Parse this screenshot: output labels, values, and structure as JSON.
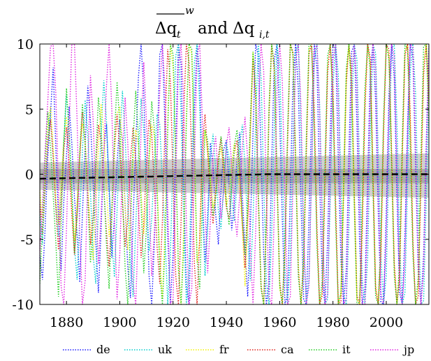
{
  "chart_data": {
    "type": "line",
    "title": {
      "symbol": "Δq",
      "subscript_t": "t",
      "superscript": "w",
      "connector": "and",
      "symbol2": "Δq",
      "subscript2": "i,t"
    },
    "xlabel": "",
    "ylabel": "",
    "xlim": [
      1870,
      2016
    ],
    "ylim": [
      -10,
      10
    ],
    "xticks": [
      1880,
      1900,
      1920,
      1940,
      1960,
      1980,
      2000
    ],
    "yticks": [
      10,
      5,
      0,
      -5,
      -10
    ],
    "ytick_labels": [
      "10",
      "5",
      "0",
      "-5",
      "-10"
    ],
    "grid": false,
    "legend_position": "bottom",
    "series": [
      {
        "name": "de",
        "color": "#1a1aff",
        "values": [
          -6.2,
          -8.1,
          -4.2,
          1.3,
          4.6,
          8.2,
          2.1,
          -3.5,
          -7.4,
          -2.1,
          1.5,
          5.2,
          2.4,
          -1.8,
          -4.6,
          -8.3,
          -3.1,
          2.2,
          6.8,
          4.1,
          -0.5,
          -5.2,
          -9.1,
          -4.3,
          1.8,
          3.9,
          -1.2,
          -6.4,
          -3.3,
          0.8,
          4.2,
          2.6,
          -2.4,
          -7.1,
          -9.5,
          -3.6,
          2.1,
          7.5,
          10,
          6.3,
          -1.1,
          -7.8,
          -10,
          -5.2,
          1.6,
          9.2,
          10,
          3.4,
          -4.8,
          -10,
          -6.1,
          2.3,
          10,
          8.4,
          -0.9,
          -8.6,
          -10,
          -2.2,
          5.1,
          10,
          7.6,
          -1.4,
          -6.8,
          -3.2,
          2.4,
          0.6,
          -3.1,
          -5.4,
          -1.2,
          1.9,
          2.6,
          -0.8,
          -4.3,
          -2.1,
          1.1,
          3.2,
          -1.6,
          -5.8,
          -9.4,
          -4.1,
          3.2,
          10,
          9.1,
          1.6,
          -6.2,
          -10,
          -8.4,
          0.7,
          8.8,
          10,
          4.3,
          -3.6,
          -10,
          -9.2,
          -1.4,
          7.2,
          10,
          6.5,
          -2.1,
          -9.6,
          -10,
          -3.4,
          4.8,
          10,
          8.1,
          -0.6,
          -8.2,
          -10,
          -5.1,
          3.3,
          10,
          9.6,
          1.2,
          -6.7,
          -10,
          -7.3,
          1.8,
          9.4,
          10,
          3.8,
          -5.4,
          -10,
          -8.8,
          -0.4,
          7.9,
          10,
          5.6,
          -2.9,
          -9.8,
          -10,
          -2.8,
          6.1,
          10,
          7.4,
          -1.6,
          -9.1,
          -10,
          -4.6,
          3.9,
          10,
          8.9,
          0.8,
          -7.5,
          -10,
          -6.2,
          2.4,
          9.8,
          10,
          2.7
        ]
      },
      {
        "name": "uk",
        "color": "#00cccc",
        "values": [
          -3.1,
          -5.4,
          -1.2,
          2.8,
          4.9,
          1.6,
          -2.3,
          -4.8,
          -1.5,
          2.2,
          6.1,
          3.4,
          -0.9,
          -5.6,
          -8.1,
          -3.2,
          1.8,
          5.7,
          3.1,
          -1.4,
          -6.2,
          -8.4,
          -2.6,
          3.3,
          7.2,
          4.1,
          -0.8,
          -5.1,
          -7.9,
          -2.8,
          2.6,
          6.4,
          2.9,
          -2.2,
          -6.8,
          -9.4,
          -4.1,
          1.5,
          5.8,
          3.3,
          -1.3,
          -5.9,
          -3.4,
          0.9,
          4.6,
          3.8,
          -0.6,
          -4.9,
          -10,
          -6.2,
          1.4,
          9.1,
          10,
          4.6,
          -3.8,
          -10,
          -7.2,
          0.8,
          8.6,
          10,
          5.1,
          -2.6,
          -7.8,
          -4.4,
          1.2,
          3.1,
          0.4,
          -2.8,
          -4.2,
          -1.1,
          2.4,
          1.3,
          -1.9,
          -3.6,
          -0.7,
          2.2,
          3.8,
          0.6,
          -4.4,
          -8.2,
          -3.6,
          4.1,
          10,
          7.4,
          -0.8,
          -8.1,
          -10,
          -4.6,
          3.7,
          10,
          8.2,
          0.6,
          -7.3,
          -10,
          -6.4,
          2.1,
          9.4,
          10,
          3.2,
          -5.8,
          -10,
          -8.1,
          0.3,
          8.7,
          10,
          5.3,
          -3.1,
          -10,
          -9.6,
          -1.8,
          6.9,
          10,
          7.6,
          -0.9,
          -9.2,
          -10,
          -4.2,
          5.1,
          10,
          8.8,
          0.4,
          -8.1,
          -10,
          -6.6,
          3.2,
          10,
          9.3,
          1.6,
          -6.4,
          -10,
          -7.8,
          1.4,
          9.6,
          10,
          4.1,
          -5.2,
          -10,
          -9.1,
          -0.6,
          7.9,
          10,
          6.2,
          -2.8,
          -10,
          -9.7,
          -1.9,
          6.8,
          10,
          5.2,
          -4.6,
          -10,
          -5.2
        ]
      },
      {
        "name": "fr",
        "color": "#f2f200",
        "values": [
          -1.2,
          -3.4,
          0.8,
          3.6,
          5.2,
          2.1,
          -1.8,
          -3.9,
          -0.6,
          2.8,
          4.4,
          1.2,
          -2.4,
          -5.1,
          -2.2,
          1.6,
          3.9,
          2.6,
          -1.1,
          -4.2,
          -6.6,
          -2.5,
          2.1,
          5.4,
          3.2,
          -0.9,
          -4.8,
          -2.6,
          1.4,
          4.7,
          5.1,
          1.8,
          -2.6,
          -5.8,
          -3.1,
          0.9,
          3.4,
          2.2,
          -1.4,
          -4.6,
          -2.2,
          1.1,
          3.8,
          2.9,
          -0.8,
          -6.2,
          -9.6,
          -3.8,
          4.2,
          10,
          8.1,
          0.6,
          -7.4,
          -10,
          -4.1,
          4.6,
          10,
          9.2,
          1.4,
          -6.8,
          -5.2,
          0.6,
          3.4,
          1.8,
          -0.4,
          -2.6,
          -1.2,
          0.9,
          2.1,
          0.2,
          -2.4,
          -1.6,
          0.8,
          2.4,
          1.3,
          -1.1,
          -4.2,
          -8.6,
          -3.9,
          3.1,
          9.4,
          6.2,
          -1.8,
          -8.4,
          -10,
          -3.2,
          5.1,
          10,
          7.6,
          -0.8,
          -8.8,
          -10,
          -5.4,
          3.1,
          10,
          9.1,
          1.6,
          -6.9,
          -10,
          -6.6,
          1.9,
          9.6,
          10,
          4.1,
          -4.8,
          -10,
          -8.9,
          -0.4,
          8.2,
          10,
          6.1,
          -2.7,
          -10,
          -9.2,
          -1.1,
          7.4,
          10,
          6.9,
          -1.9,
          -9.6,
          -10,
          -3.8,
          5.6,
          10,
          8.4,
          -0.2,
          -8.4,
          -10,
          -5.8,
          3.6,
          10,
          9.1,
          1.2,
          -7.1,
          -10,
          -7.4,
          1.6,
          9.4,
          10,
          3.9,
          -5.6,
          -10,
          -8.6,
          0.2,
          8.4,
          10,
          5.1,
          -3.9,
          -10,
          -8.4,
          -1.2,
          6.1,
          9.2,
          4.6
        ]
      },
      {
        "name": "ca",
        "color": "#e0201a",
        "values": [
          -2.1,
          -4.6,
          -1.1,
          2.4,
          4.2,
          1.3,
          -2.6,
          -5.8,
          -2.2,
          1.9,
          3.6,
          0.8,
          -3.1,
          -6.2,
          -2.9,
          1.2,
          4.8,
          2.4,
          -1.6,
          -5.4,
          -3.2,
          0.6,
          3.8,
          2.6,
          -1.2,
          -4.4,
          -7.1,
          -2.8,
          2.1,
          4.6,
          1.9,
          -2.2,
          -5.6,
          -3.4,
          1.1,
          3.6,
          1.2,
          -2.8,
          -6.4,
          -3.9,
          0.8,
          4.2,
          3.1,
          -1.1,
          -5.6,
          -8.4,
          -3.6,
          3.9,
          9.6,
          7.2,
          -0.4,
          -7.8,
          -10,
          -3.6,
          4.8,
          10,
          8.6,
          0.9,
          -6.9,
          -10,
          -4.8,
          2.1,
          4.6,
          1.6,
          -1.9,
          -3.8,
          -1.4,
          1.4,
          2.8,
          0.4,
          -2.6,
          -3.4,
          -0.8,
          1.8,
          2.6,
          0.2,
          -3.6,
          -7.2,
          -3.1,
          3.6,
          8.9,
          5.6,
          -2.1,
          -8.6,
          -10,
          -4.1,
          4.4,
          10,
          8.1,
          0.2,
          -8.2,
          -10,
          -6.1,
          2.6,
          10,
          9.4,
          1.1,
          -7.4,
          -10,
          -7.2,
          1.4,
          9.2,
          10,
          4.8,
          -4.2,
          -10,
          -9.3,
          -0.8,
          7.8,
          10,
          6.6,
          -2.2,
          -10,
          -9.8,
          -1.6,
          6.9,
          10,
          7.6,
          -1.4,
          -9.3,
          -10,
          -4.4,
          4.9,
          10,
          8.9,
          0.2,
          -8.8,
          -10,
          -6.2,
          3.1,
          10,
          9.6,
          1.7,
          -6.8,
          -10,
          -8.1,
          1.1,
          9.1,
          10,
          4.6,
          -5.1,
          -10,
          -9.4,
          -0.8,
          7.6,
          10,
          5.9,
          -3.4,
          -10,
          -8.9,
          -0.4,
          7.2,
          10
        ]
      },
      {
        "name": "it",
        "color": "#22cc22",
        "values": [
          -8.4,
          -4.1,
          1.2,
          4.8,
          2.1,
          -1.6,
          -5.2,
          -9.4,
          -3.8,
          2.4,
          6.6,
          3.1,
          -1.4,
          -6.1,
          -3.3,
          1.8,
          5.4,
          2.2,
          -2.1,
          -6.8,
          -4.1,
          1.1,
          5.9,
          3.6,
          -0.8,
          -5.4,
          -8.8,
          -3.4,
          2.9,
          7.1,
          3.8,
          -1.6,
          -7.2,
          -10,
          -4.4,
          2.6,
          6.4,
          2.8,
          -2.4,
          -7.6,
          -4.2,
          1.4,
          5.6,
          3.4,
          -1.2,
          -7.4,
          -10,
          -5.6,
          3.2,
          10,
          9.2,
          1.6,
          -7.1,
          -10,
          -5.8,
          3.8,
          10,
          9.6,
          2.1,
          -6.4,
          -8.8,
          -2.2,
          3.4,
          2.6,
          -0.6,
          -3.2,
          -1.8,
          0.6,
          2.9,
          1.2,
          -2.1,
          -3.9,
          -0.9,
          2.2,
          3.4,
          0.8,
          -3.4,
          -6.2,
          -2.1,
          4.2,
          9.4,
          6.6,
          -1.2,
          -8.8,
          -10,
          -3.6,
          5.1,
          10,
          8.4,
          -0.1,
          -8.6,
          -10,
          -5.2,
          3.6,
          10,
          9.2,
          0.8,
          -7.9,
          -10,
          -6.1,
          2.8,
          10,
          9.8,
          3.1,
          -5.6,
          -10,
          -8.1,
          0.6,
          9.1,
          10,
          5.4,
          -3.8,
          -10,
          -9.1,
          -0.6,
          8.1,
          10,
          6.2,
          -2.6,
          -10,
          -9.8,
          -2.1,
          6.6,
          10,
          7.9,
          -1.1,
          -9.4,
          -10,
          -4.6,
          4.4,
          10,
          8.8,
          0.6,
          -7.8,
          -10,
          -6.9,
          2.6,
          10,
          9.6,
          2.1,
          -6.2,
          -10,
          -7.9,
          1.6,
          9.8,
          10,
          3.8,
          -5.9,
          -10,
          -8.2,
          0.6,
          8.8,
          10
        ]
      },
      {
        "name": "jp",
        "color": "#e020e0",
        "values": [
          -6.1,
          -2.4,
          1.8,
          5.6,
          9.8,
          10,
          6.2,
          -1.4,
          -8.6,
          -10,
          -4.2,
          3.6,
          10,
          10,
          4.1,
          -4.8,
          -10,
          -8.2,
          0.4,
          7.6,
          4.2,
          -1.8,
          -6.9,
          -3.1,
          1.6,
          6.8,
          10,
          5.1,
          -3.2,
          -9.6,
          -6.1,
          0.8,
          5.9,
          2.4,
          -2.6,
          -8.4,
          -10,
          -3.8,
          3.4,
          8.6,
          4.1,
          -1.9,
          -7.8,
          -4.3,
          1.2,
          6.4,
          10,
          6.6,
          -2.4,
          -10,
          -9.6,
          -0.8,
          8.4,
          10,
          5.6,
          -3.6,
          -10,
          -8.8,
          0.6,
          9.1,
          10,
          4.2,
          -2.8,
          -7.6,
          -3.6,
          1.4,
          2.9,
          -0.6,
          -3.4,
          -1.2,
          2.2,
          3.6,
          0.6,
          -2.8,
          -4.8,
          -1.6,
          2.1,
          4.4,
          1.1,
          -5.8,
          -10,
          -4.4,
          4.6,
          10,
          7.9,
          -1.6,
          -9.4,
          -10,
          -2.8,
          6.4,
          10,
          7.1,
          -2.2,
          -10,
          -9.4,
          -0.6,
          8.6,
          10,
          5.2,
          -4.4,
          -10,
          -8.6,
          0.4,
          9.4,
          10,
          4.6,
          -4.1,
          -10,
          -9.2,
          -0.2,
          8.8,
          10,
          5.6,
          -3.6,
          -10,
          -9.6,
          -1.2,
          7.6,
          10,
          6.8,
          -2.1,
          -10,
          -10,
          -3.4,
          6.2,
          10,
          8.2,
          -0.6,
          -9.2,
          -10,
          -5.1,
          4.2,
          10,
          9.1,
          0.9,
          -8.1,
          -10,
          -6.8,
          2.6,
          10,
          9.8,
          2.4,
          -6.6,
          -10,
          -7.6,
          1.4,
          9.4,
          10,
          3.6,
          -5.8,
          -10,
          -8.9
        ]
      },
      {
        "name": "",
        "color": "#000000",
        "mean_line": true,
        "values": [
          -0.35,
          -0.34,
          -0.34,
          -0.33,
          -0.33,
          -0.32,
          -0.32,
          -0.32,
          -0.31,
          -0.31,
          -0.3,
          -0.3,
          -0.3,
          -0.29,
          -0.29,
          -0.28,
          -0.28,
          -0.28,
          -0.27,
          -0.27,
          -0.26,
          -0.26,
          -0.26,
          -0.25,
          -0.25,
          -0.24,
          -0.24,
          -0.24,
          -0.23,
          -0.23,
          -0.22,
          -0.22,
          -0.22,
          -0.21,
          -0.21,
          -0.2,
          -0.2,
          -0.2,
          -0.19,
          -0.19,
          -0.18,
          -0.18,
          -0.18,
          -0.17,
          -0.17,
          -0.16,
          -0.16,
          -0.16,
          -0.15,
          -0.15,
          -0.14,
          -0.14,
          -0.14,
          -0.13,
          -0.13,
          -0.12,
          -0.12,
          -0.12,
          -0.11,
          -0.11,
          -0.1,
          -0.1,
          -0.1,
          -0.09,
          -0.09,
          -0.08,
          -0.08,
          -0.08,
          -0.07,
          -0.07,
          -0.06,
          -0.06,
          -0.06,
          -0.05,
          -0.05,
          -0.04,
          -0.04,
          -0.04,
          -0.03,
          -0.03,
          -0.02,
          -0.02,
          -0.02,
          -0.01,
          -0.01,
          0.0,
          0.0,
          0.0,
          0.0,
          0.0,
          0.0,
          0.0,
          0.0,
          0.0,
          0.0,
          0.0,
          0.0,
          0.0,
          0.0,
          0.0,
          0.0,
          0.0,
          0.0,
          0.0,
          0.0,
          0.0,
          0.0,
          0.0,
          0.0,
          0.0,
          0.0,
          0.0,
          0.0,
          0.0,
          0.0,
          0.0,
          0.0,
          0.0,
          0.0,
          0.0,
          0.0,
          0.0,
          0.0,
          0.0,
          0.0,
          0.0,
          0.0,
          0.0,
          0.0,
          0.0,
          0.0,
          0.0,
          0.0,
          0.0,
          0.0,
          0.0,
          0.0,
          0.0,
          0.0,
          0.0,
          0.0,
          0.0,
          0.0,
          0.0,
          0.0,
          0.0,
          0.0,
          0.0
        ]
      }
    ],
    "bands": {
      "inner_color": "#a0a0a0",
      "outer_color": "#c8c8c8",
      "inner_lower": -0.7,
      "inner_upper": 0.4,
      "outer_lower_start": -1.2,
      "outer_lower_end": -1.8,
      "outer_upper_start": 0.9,
      "outer_upper_end": 1.6
    },
    "x_start": 1870
  }
}
